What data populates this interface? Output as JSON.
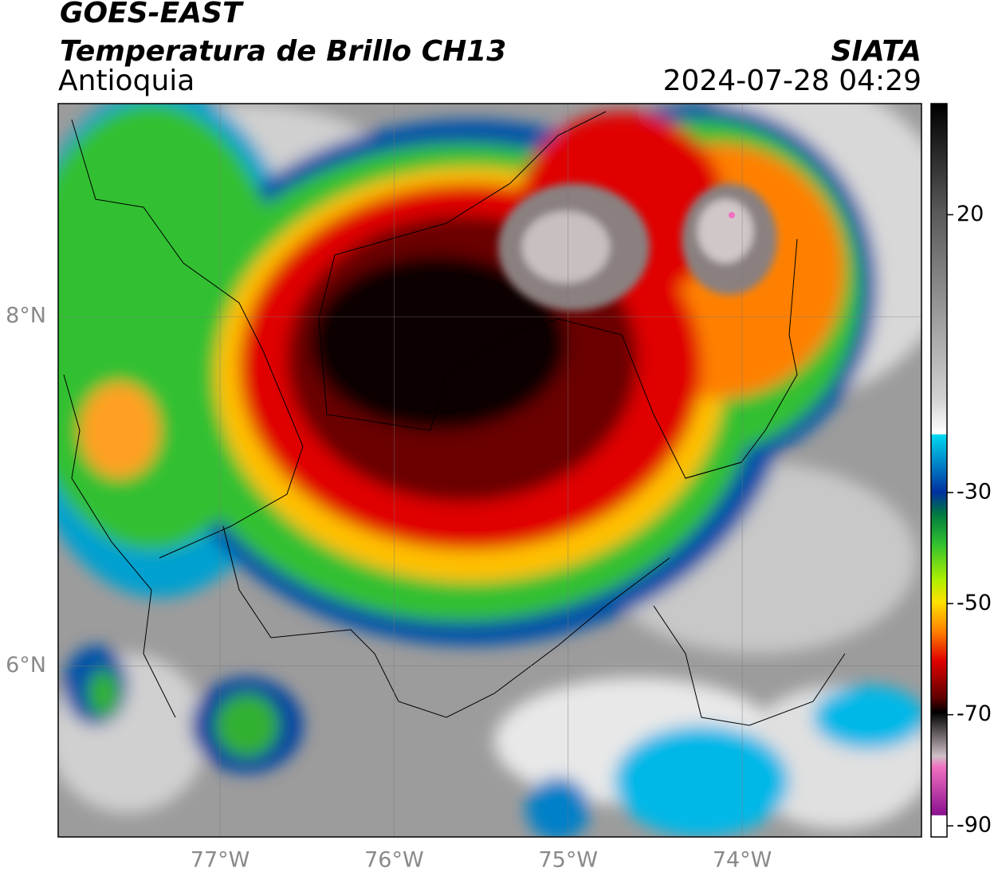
{
  "header": {
    "title": "GOES-EAST",
    "subtitle": "Temperatura de Brillo CH13",
    "region": "Antioquia",
    "source": "SIATA",
    "timestamp": "2024-07-28 04:29"
  },
  "map": {
    "xlim": [
      -77.93,
      -72.97
    ],
    "ylim": [
      5.02,
      9.22
    ],
    "xticks": [
      {
        "value": -77,
        "label": "77°W"
      },
      {
        "value": -76,
        "label": "76°W"
      },
      {
        "value": -75,
        "label": "75°W"
      },
      {
        "value": -74,
        "label": "74°W"
      }
    ],
    "yticks": [
      {
        "value": 8,
        "label": "8°N"
      },
      {
        "value": 6,
        "label": "6°N"
      }
    ],
    "grid": true
  },
  "colorbar": {
    "lim": [
      -92,
      40
    ],
    "ticks": [
      20,
      -30,
      -50,
      -70,
      -90
    ]
  }
}
